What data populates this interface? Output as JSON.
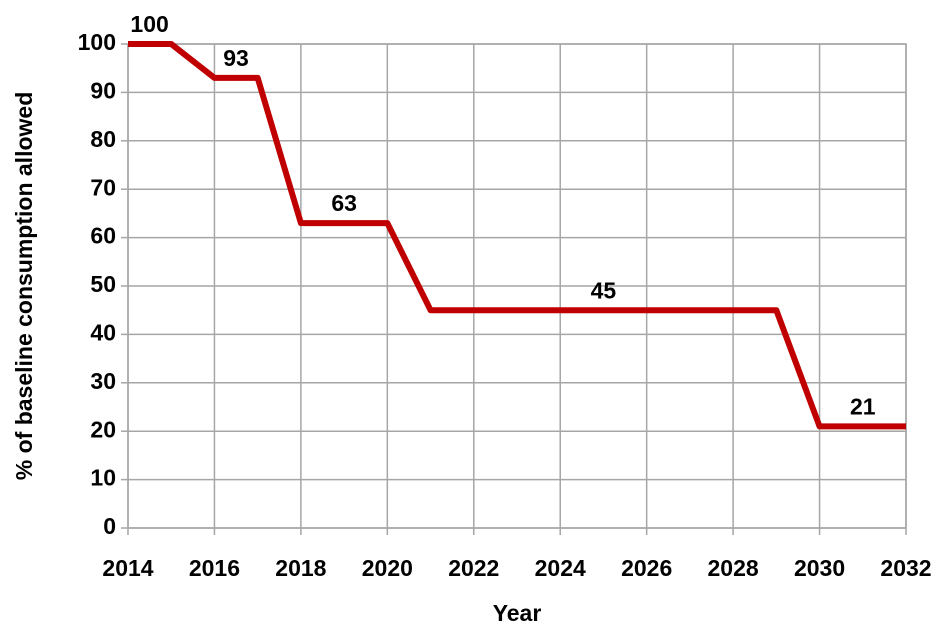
{
  "chart_data": {
    "type": "line",
    "x_label": "Year",
    "y_label": "% of baseline consumption allowed",
    "x": [
      2014,
      2015,
      2016,
      2017,
      2018,
      2019,
      2020,
      2021,
      2022,
      2023,
      2024,
      2025,
      2026,
      2027,
      2028,
      2029,
      2030,
      2031,
      2032
    ],
    "series": [
      {
        "color": "#c00000",
        "values": [
          100,
          100,
          93,
          93,
          63,
          63,
          63,
          45,
          45,
          45,
          45,
          45,
          45,
          45,
          45,
          45,
          21,
          21,
          21
        ],
        "value_labels": [
          "100",
          null,
          "93",
          null,
          null,
          "63",
          null,
          null,
          null,
          null,
          null,
          "45",
          null,
          null,
          null,
          null,
          null,
          "21",
          null
        ]
      }
    ],
    "xlim": [
      2014,
      2032
    ],
    "xticks": [
      2014,
      2016,
      2018,
      2020,
      2022,
      2024,
      2026,
      2028,
      2030,
      2032
    ],
    "ylim": [
      0,
      100
    ],
    "yticks": [
      0,
      10,
      20,
      30,
      40,
      50,
      60,
      70,
      80,
      90,
      100
    ],
    "grid": true
  }
}
